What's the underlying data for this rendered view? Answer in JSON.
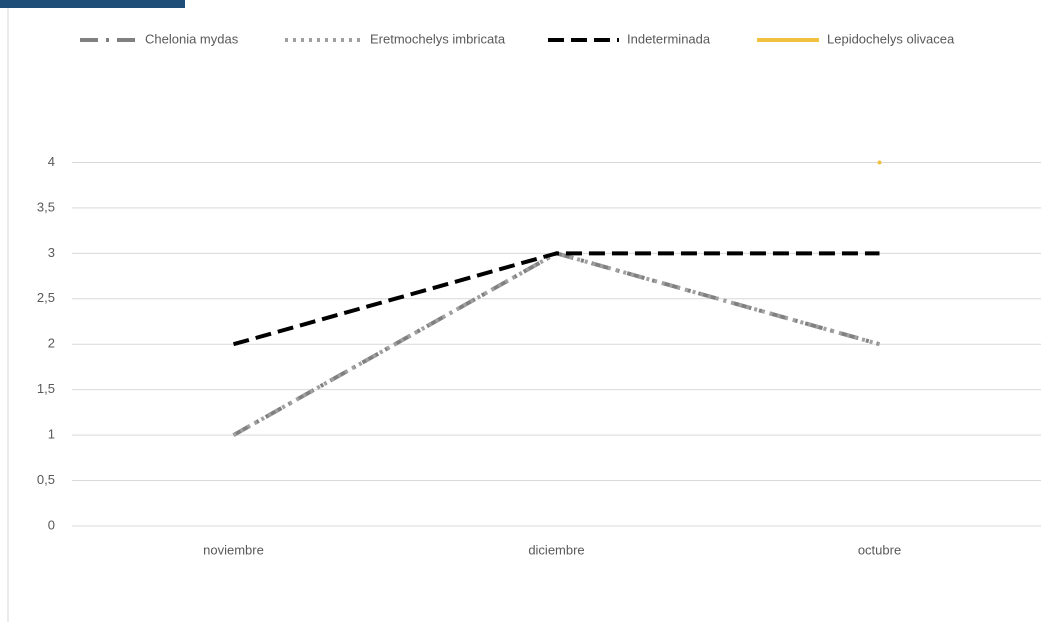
{
  "chart_data": {
    "type": "line",
    "categories": [
      "noviembre",
      "diciembre",
      "octubre"
    ],
    "series": [
      {
        "name": "Chelonia mydas",
        "color": "#808080",
        "dash": "18 8 3 8",
        "values": [
          1,
          3,
          2
        ]
      },
      {
        "name": "Eretmochelys imbricata",
        "color": "#a0a0a0",
        "dash": "3 5",
        "values": [
          1,
          3,
          2
        ]
      },
      {
        "name": "Indeterminada",
        "color": "#000000",
        "dash": "16 7",
        "values": [
          2,
          3,
          3
        ]
      },
      {
        "name": "Lepidochelys olivacea",
        "color": "#f0c040",
        "dash": "none",
        "values": [
          null,
          null,
          4
        ]
      }
    ],
    "ylim": [
      0,
      4.5
    ],
    "yticks": [
      0,
      {
        "value": 0.5,
        "label": "0,5"
      },
      1,
      {
        "value": 1.5,
        "label": "1,5"
      },
      2,
      {
        "value": 2.5,
        "label": "2,5"
      },
      3,
      {
        "value": 3.5,
        "label": "3,5"
      },
      4
    ],
    "grid": true
  }
}
